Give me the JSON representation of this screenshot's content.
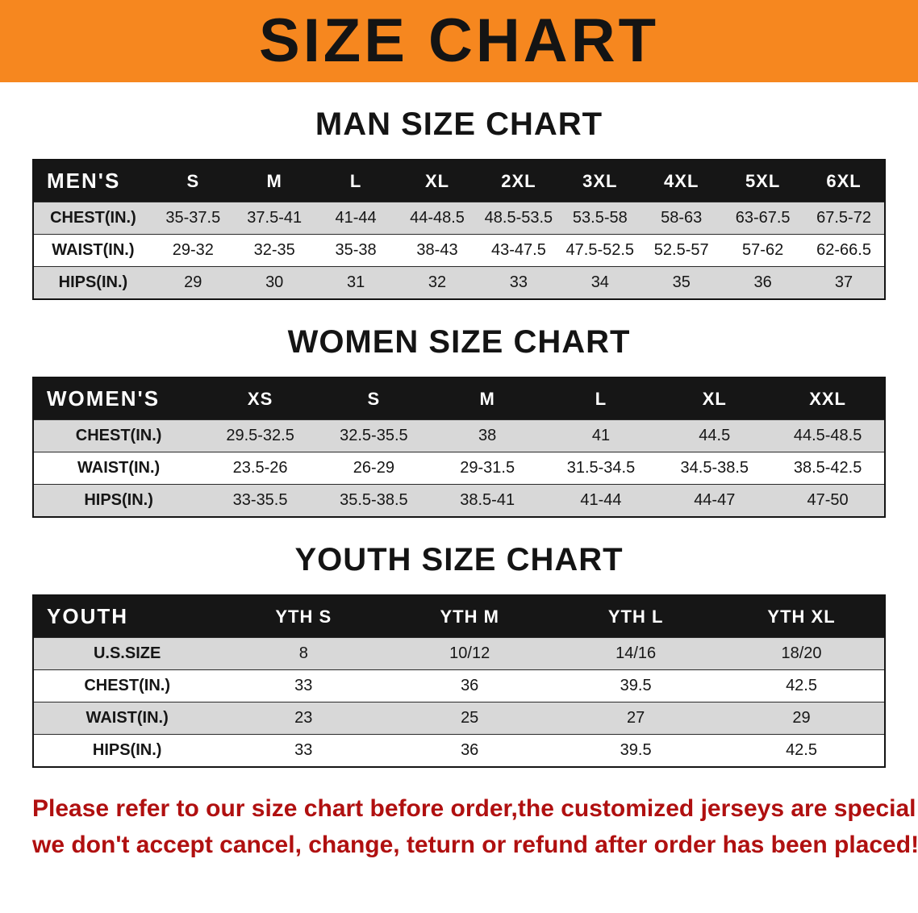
{
  "banner": {
    "title": "SIZE CHART"
  },
  "colors": {
    "banner_bg": "#f6871f",
    "table_header_bg": "#161616",
    "row_alt_bg": "#d8d8d8",
    "notice_text": "#b01010"
  },
  "sections": [
    {
      "heading": "MAN SIZE CHART",
      "table": {
        "header": [
          "MEN'S",
          "S",
          "M",
          "L",
          "XL",
          "2XL",
          "3XL",
          "4XL",
          "5XL",
          "6XL"
        ],
        "rows": [
          [
            "CHEST(IN.)",
            "35-37.5",
            "37.5-41",
            "41-44",
            "44-48.5",
            "48.5-53.5",
            "53.5-58",
            "58-63",
            "63-67.5",
            "67.5-72"
          ],
          [
            "WAIST(IN.)",
            "29-32",
            "32-35",
            "35-38",
            "38-43",
            "43-47.5",
            "47.5-52.5",
            "52.5-57",
            "57-62",
            "62-66.5"
          ],
          [
            "HIPS(IN.)",
            "29",
            "30",
            "31",
            "32",
            "33",
            "34",
            "35",
            "36",
            "37"
          ]
        ]
      }
    },
    {
      "heading": "WOMEN SIZE CHART",
      "table": {
        "header": [
          "WOMEN'S",
          "XS",
          "S",
          "M",
          "L",
          "XL",
          "XXL"
        ],
        "rows": [
          [
            "CHEST(IN.)",
            "29.5-32.5",
            "32.5-35.5",
            "38",
            "41",
            "44.5",
            "44.5-48.5"
          ],
          [
            "WAIST(IN.)",
            "23.5-26",
            "26-29",
            "29-31.5",
            "31.5-34.5",
            "34.5-38.5",
            "38.5-42.5"
          ],
          [
            "HIPS(IN.)",
            "33-35.5",
            "35.5-38.5",
            "38.5-41",
            "41-44",
            "44-47",
            "47-50"
          ]
        ]
      }
    },
    {
      "heading": "YOUTH SIZE CHART",
      "table": {
        "header": [
          "YOUTH",
          "YTH S",
          "YTH M",
          "YTH L",
          "YTH XL"
        ],
        "rows": [
          [
            "U.S.SIZE",
            "8",
            "10/12",
            "14/16",
            "18/20"
          ],
          [
            "CHEST(IN.)",
            "33",
            "36",
            "39.5",
            "42.5"
          ],
          [
            "WAIST(IN.)",
            "23",
            "25",
            "27",
            "29"
          ],
          [
            "HIPS(IN.)",
            "33",
            "36",
            "39.5",
            "42.5"
          ]
        ]
      }
    }
  ],
  "notice": {
    "lines": [
      "Please refer to our size chart before order,the customized jerseys are special products,",
      "we don't accept cancel, change, teturn or refund after order has been placed!"
    ]
  }
}
